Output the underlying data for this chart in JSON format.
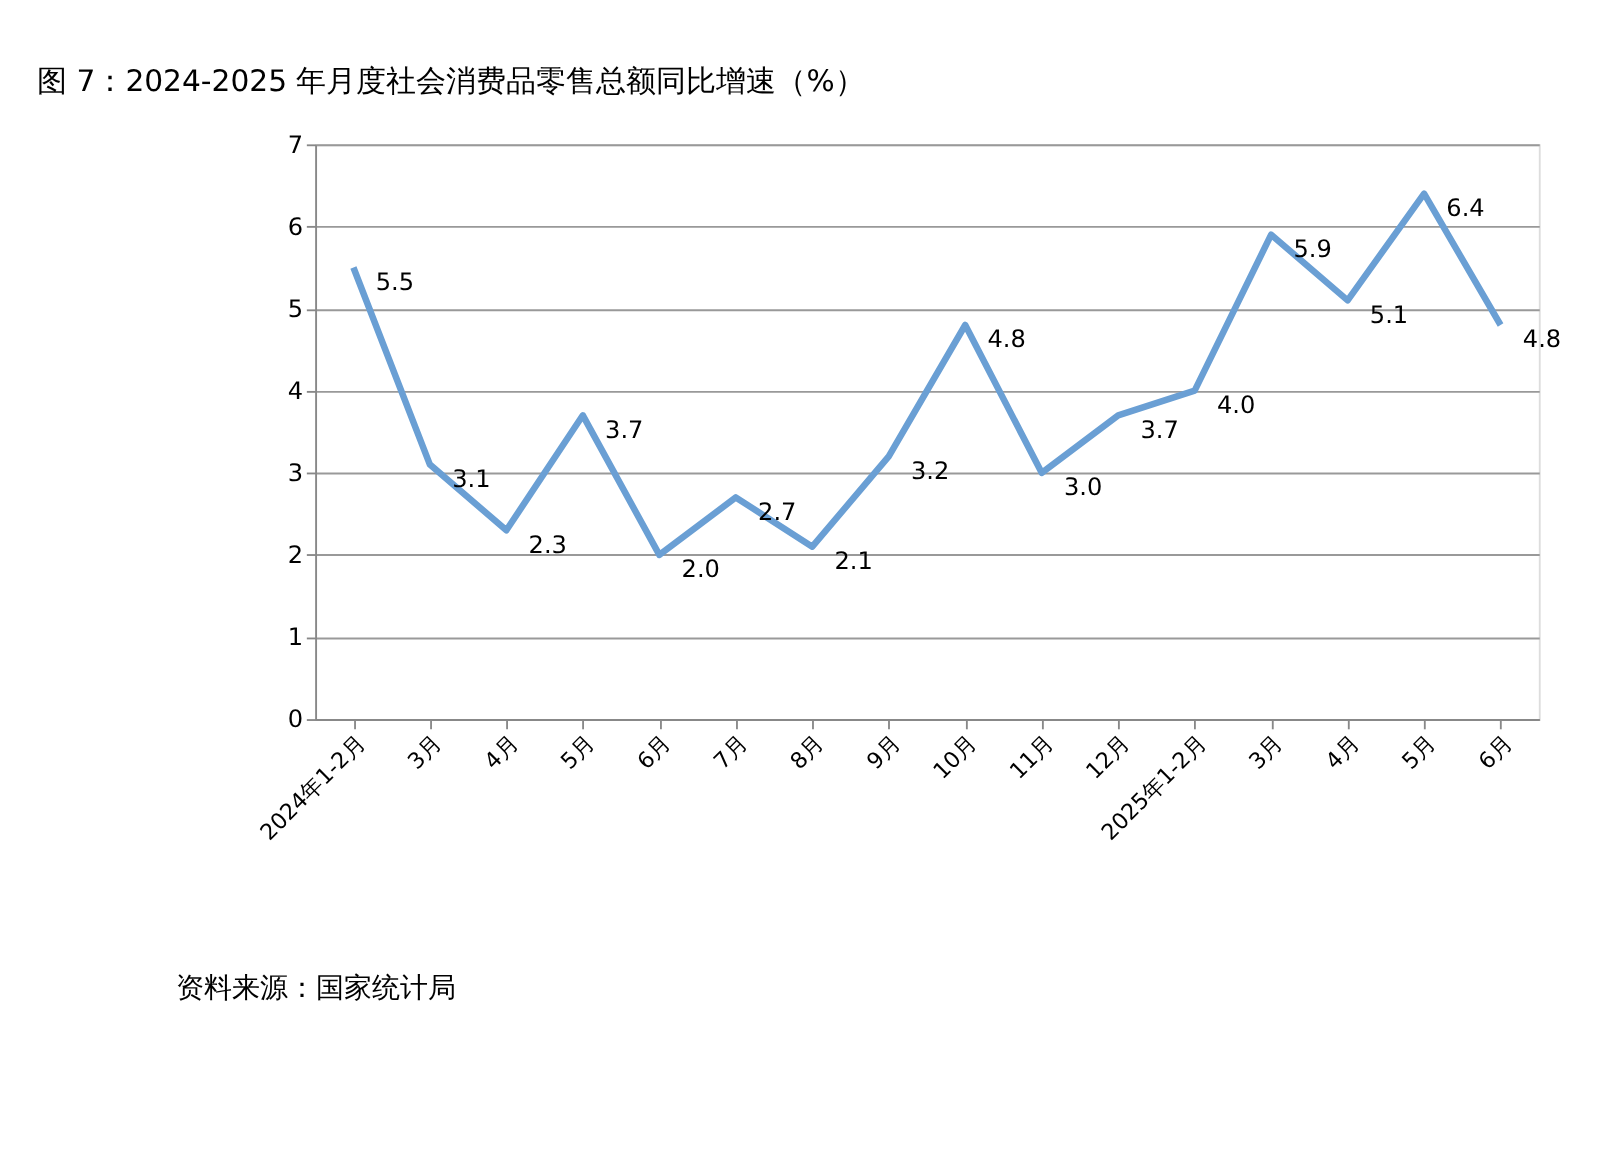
{
  "chart_data": {
    "type": "line",
    "title": "图 7：2024-2025 年月度社会消费品零售总额同比增速（%）",
    "categories": [
      "2024年1-2月",
      "3月",
      "4月",
      "5月",
      "6月",
      "7月",
      "8月",
      "9月",
      "10月",
      "11月",
      "12月",
      "2025年1-2月",
      "3月",
      "4月",
      "5月",
      "6月"
    ],
    "series": [
      {
        "color": "#6a9fd4",
        "values": [
          5.5,
          3.1,
          2.3,
          3.7,
          2.0,
          2.7,
          2.1,
          3.2,
          4.8,
          3.0,
          3.7,
          4.0,
          5.9,
          5.1,
          6.4,
          4.8
        ],
        "value_labels": [
          "5.5",
          "3.1",
          "2.3",
          "3.7",
          "2.0",
          "2.7",
          "2.1",
          "3.2",
          "4.8",
          "3.0",
          "3.7",
          "4.0",
          "5.9",
          "5.1",
          "6.4",
          "4.8"
        ]
      }
    ],
    "ylim": [
      0,
      7
    ],
    "yticks": [
      0,
      1,
      2,
      3,
      4,
      5,
      6,
      7
    ],
    "grid": "y",
    "legend": false,
    "marker": "none",
    "line_style": "solid",
    "annotations": [
      "资料来源：国家统计局"
    ]
  }
}
